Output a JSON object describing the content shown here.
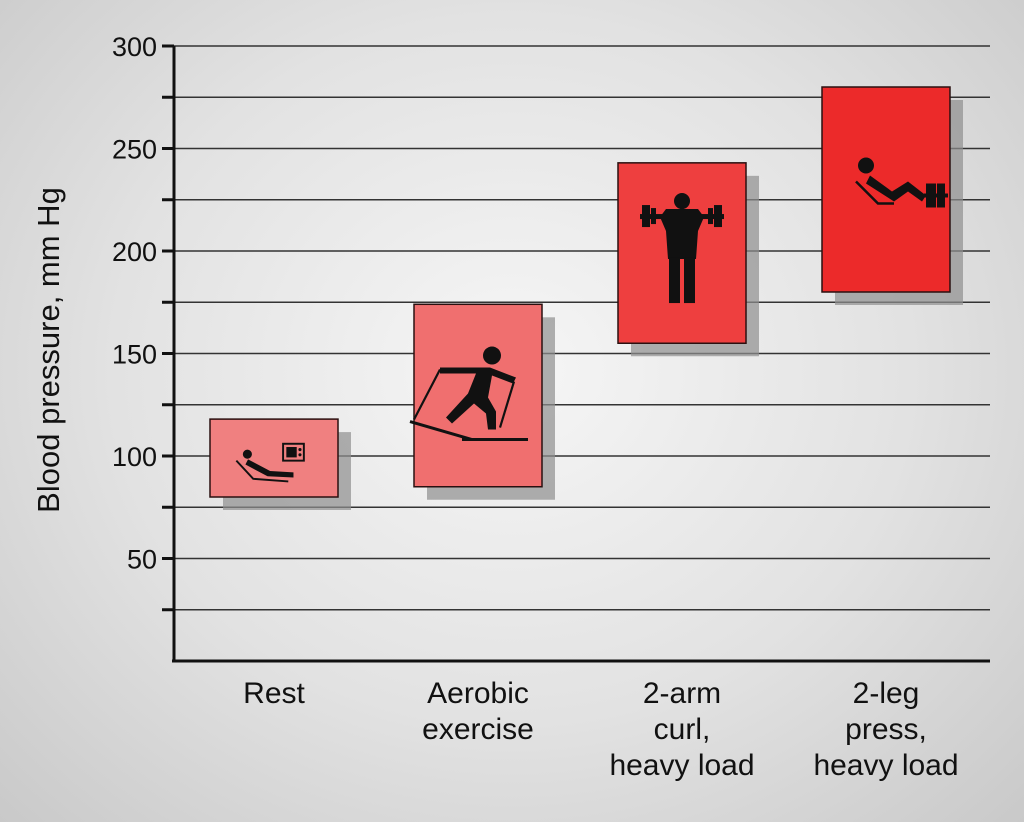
{
  "chart_data": {
    "type": "bar",
    "subtype": "floating-range",
    "ylabel": "Blood pressure, mm Hg",
    "ylim": [
      0,
      300
    ],
    "yticks_labeled": [
      50,
      100,
      150,
      200,
      250,
      300
    ],
    "yticks_minor": [
      25,
      75,
      125,
      175,
      225,
      275
    ],
    "grid": true,
    "categories": [
      {
        "label_lines": [
          "Rest"
        ],
        "low": 80,
        "high": 118,
        "color": "#f08080",
        "icon": "reclining-tv-icon"
      },
      {
        "label_lines": [
          "Aerobic",
          "exercise"
        ],
        "low": 85,
        "high": 174,
        "color": "#f06f6f",
        "icon": "cross-country-skier-icon"
      },
      {
        "label_lines": [
          "2-arm",
          "curl,",
          "heavy load"
        ],
        "low": 155,
        "high": 243,
        "color": "#ee3f3f",
        "icon": "barbell-lifter-icon"
      },
      {
        "label_lines": [
          "2-leg",
          "press,",
          "heavy load"
        ],
        "low": 180,
        "high": 280,
        "color": "#ec2a2a",
        "icon": "leg-press-icon"
      }
    ]
  },
  "colors": {
    "grid": "#333333",
    "axis": "#111111",
    "bar_stroke": "#2a1010",
    "shadow": "#8f8f8f",
    "icon": "#111111"
  }
}
